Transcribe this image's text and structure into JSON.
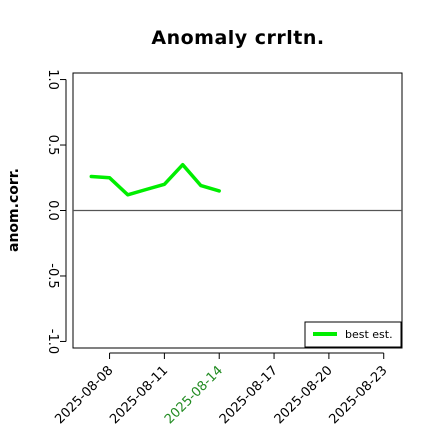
{
  "chart_data": {
    "type": "line",
    "title": "Anomaly crrltn.",
    "xlabel": "",
    "ylabel": "anom.corr.",
    "ylim": [
      -1.05,
      1.05
    ],
    "xlim": [
      "2025-08-06",
      "2025-08-24"
    ],
    "yticks": [
      -1.0,
      -0.5,
      0.0,
      0.5,
      1.0
    ],
    "ytick_labels": [
      "-1.0",
      "-0.5",
      "0.0",
      "0.5",
      "1.0"
    ],
    "xticks": [
      "2025-08-08",
      "2025-08-11",
      "2025-08-14",
      "2025-08-17",
      "2025-08-20",
      "2025-08-23"
    ],
    "xtick_labels": [
      "2025-08-08",
      "2025-08-11",
      "2025-08-14",
      "2025-08-17",
      "2025-08-20",
      "2025-08-23"
    ],
    "highlighted_xtick": "2025-08-14",
    "highlight_color": "#228B22",
    "reference_line": {
      "y": 0,
      "from": "2025-08-06",
      "to": "2025-08-24",
      "color": "#555555"
    },
    "series": [
      {
        "name": "best est.",
        "color": "#00ee00",
        "x": [
          "2025-08-07",
          "2025-08-08",
          "2025-08-09",
          "2025-08-10",
          "2025-08-11",
          "2025-08-12",
          "2025-08-13",
          "2025-08-14"
        ],
        "y": [
          0.26,
          0.25,
          0.12,
          0.16,
          0.2,
          0.35,
          0.19,
          0.15
        ]
      }
    ],
    "legend": {
      "position": "bottom-right"
    },
    "grid": false
  }
}
